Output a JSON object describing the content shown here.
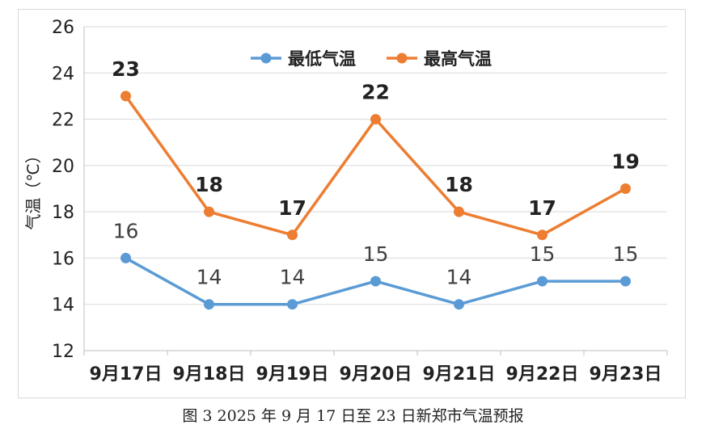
{
  "chart_data": {
    "type": "line",
    "categories": [
      "9月17日",
      "9月18日",
      "9月19日",
      "9月20日",
      "9月21日",
      "9月22日",
      "9月23日"
    ],
    "series": [
      {
        "name": "最低气温",
        "values": [
          16,
          14,
          14,
          15,
          14,
          15,
          15
        ],
        "color": "#5b9bd5"
      },
      {
        "name": "最高气温",
        "values": [
          23,
          18,
          17,
          22,
          18,
          17,
          19
        ],
        "color": "#ed7d31"
      }
    ],
    "ylabel": "气温（℃）",
    "ylim": [
      12,
      26
    ],
    "yticks": [
      12,
      14,
      16,
      18,
      20,
      22,
      24,
      26
    ],
    "grid": true,
    "legend": "top-center",
    "data_labels": true
  },
  "caption": "图 3  2025 年 9 月 17 日至 23 日新郑市气温预报"
}
